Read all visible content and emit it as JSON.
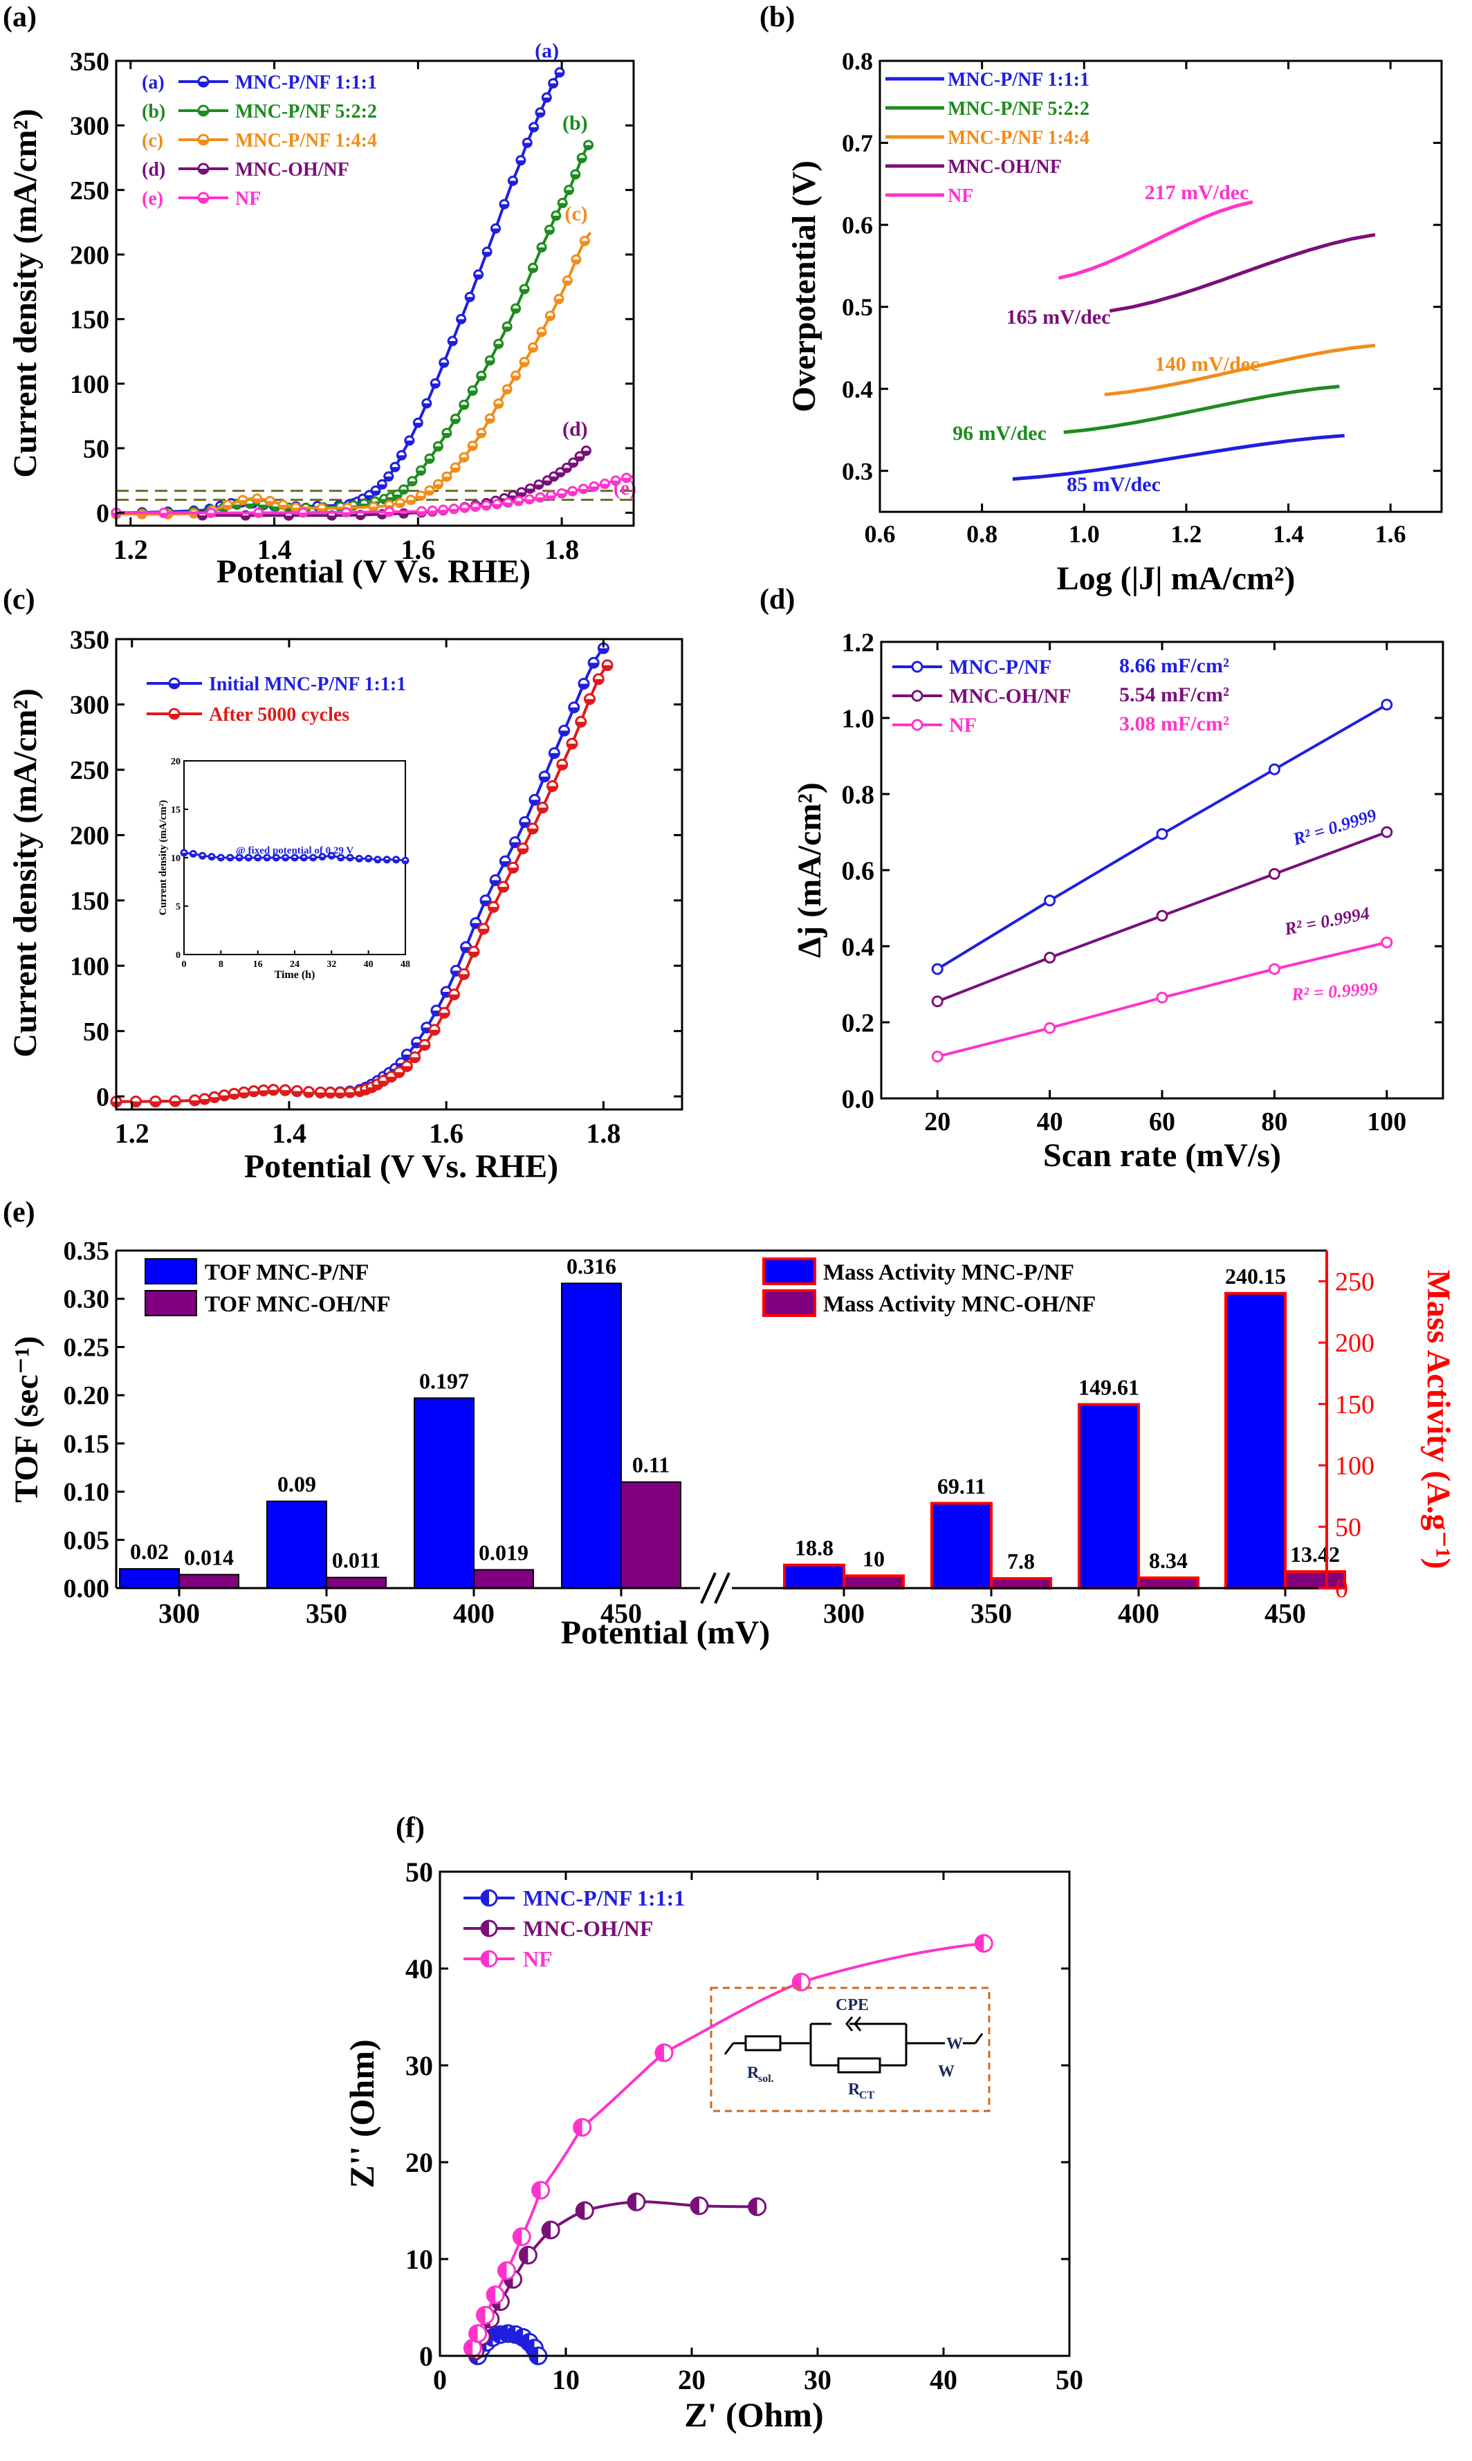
{
  "chart_data": [
    {
      "type": "line",
      "panel": "(a)",
      "xlabel": "Potential (V Vs. RHE)",
      "ylabel": "Current density (mA/cm²)",
      "xlim": [
        1.18,
        1.9
      ],
      "ylim": [
        -10,
        350
      ],
      "xticks": [
        "1.2",
        "1.4",
        "1.6",
        "1.8"
      ],
      "xtick_values": [
        1.2,
        1.4,
        1.6,
        1.8
      ],
      "yticks": [
        "0",
        "50",
        "100",
        "150",
        "200",
        "250",
        "300",
        "350"
      ],
      "ytick_values": [
        0,
        50,
        100,
        150,
        200,
        250,
        300,
        350
      ],
      "reference_lines": [
        10,
        17
      ],
      "legend_position": "top-left",
      "series": [
        {
          "label": "(a)",
          "name": "MNC-P/NF 1:1:1",
          "color": "#1f1fe0",
          "x": [
            1.18,
            1.3,
            1.35,
            1.4,
            1.5,
            1.52,
            1.55,
            1.58,
            1.62,
            1.66,
            1.7,
            1.74,
            1.77,
            1.8
          ],
          "y": [
            0,
            2,
            8,
            5,
            6,
            10,
            22,
            48,
            95,
            150,
            208,
            268,
            310,
            343
          ]
        },
        {
          "label": "(b)",
          "name": "MNC-P/NF 5:2:2",
          "color": "#1e8c1e",
          "x": [
            1.18,
            1.3,
            1.36,
            1.42,
            1.5,
            1.55,
            1.58,
            1.62,
            1.66,
            1.7,
            1.74,
            1.78,
            1.81,
            1.84
          ],
          "y": [
            -1,
            1,
            7,
            4,
            5,
            10,
            18,
            45,
            80,
            118,
            163,
            215,
            250,
            287
          ]
        },
        {
          "label": "(c)",
          "name": "MNC-P/NF 1:4:4",
          "color": "#f28c1a",
          "x": [
            1.18,
            1.3,
            1.37,
            1.43,
            1.55,
            1.6,
            1.64,
            1.68,
            1.72,
            1.76,
            1.8,
            1.84
          ],
          "y": [
            -1,
            0,
            11,
            4,
            5,
            12,
            28,
            55,
            92,
            128,
            170,
            217
          ]
        },
        {
          "label": "(d)",
          "name": "MNC-OH/NF",
          "color": "#7a0f7a",
          "x": [
            1.3,
            1.5,
            1.6,
            1.65,
            1.7,
            1.74,
            1.78,
            1.81,
            1.84
          ],
          "y": [
            -2,
            -2,
            0,
            3,
            8,
            15,
            25,
            36,
            50
          ]
        },
        {
          "label": "(e)",
          "name": "NF",
          "color": "#ff33cc",
          "x": [
            1.18,
            1.4,
            1.6,
            1.65,
            1.7,
            1.75,
            1.8,
            1.85,
            1.9
          ],
          "y": [
            0,
            0,
            1,
            3,
            6,
            10,
            15,
            21,
            28
          ]
        }
      ]
    },
    {
      "type": "line",
      "panel": "(b)",
      "xlabel": "Log (|J| mA/cm²)",
      "ylabel": "Overpotential (V)",
      "xlim": [
        0.6,
        1.7
      ],
      "ylim": [
        0.25,
        0.8
      ],
      "xticks": [
        "0.6",
        "0.8",
        "1.0",
        "1.2",
        "1.4",
        "1.6"
      ],
      "xtick_values": [
        0.6,
        0.8,
        1.0,
        1.2,
        1.4,
        1.6
      ],
      "yticks": [
        "0.3",
        "0.4",
        "0.5",
        "0.6",
        "0.7",
        "0.8"
      ],
      "ytick_values": [
        0.3,
        0.4,
        0.5,
        0.6,
        0.7,
        0.8
      ],
      "legend_position": "top-left",
      "series": [
        {
          "name": "MNC-P/NF 1:1:1",
          "color": "#1f1fe0",
          "x": [
            0.86,
            1.51
          ],
          "y": [
            0.29,
            0.343
          ],
          "slope_label": "85 mV/dec"
        },
        {
          "name": "MNC-P/NF 5:2:2",
          "color": "#1e8c1e",
          "x": [
            0.96,
            1.5
          ],
          "y": [
            0.347,
            0.403
          ],
          "slope_label": "96 mV/dec"
        },
        {
          "name": "MNC-P/NF 1:4:4",
          "color": "#f28c1a",
          "x": [
            1.04,
            1.57
          ],
          "y": [
            0.393,
            0.453
          ],
          "slope_label": "140 mV/dec"
        },
        {
          "name": "MNC-OH/NF",
          "color": "#7a0f7a",
          "x": [
            1.05,
            1.57
          ],
          "y": [
            0.495,
            0.588
          ],
          "slope_label": "165 mV/dec"
        },
        {
          "name": "NF",
          "color": "#ff33cc",
          "x": [
            0.95,
            1.33
          ],
          "y": [
            0.535,
            0.628
          ],
          "slope_label": "217 mV/dec"
        }
      ]
    },
    {
      "type": "line",
      "panel": "(c)",
      "xlabel": "Potential (V Vs. RHE)",
      "ylabel": "Current density (mA/cm²)",
      "xlim": [
        1.18,
        1.9
      ],
      "ylim": [
        -10,
        350
      ],
      "xticks": [
        "1.2",
        "1.4",
        "1.6",
        "1.8"
      ],
      "xtick_values": [
        1.2,
        1.4,
        1.6,
        1.8
      ],
      "yticks": [
        "0",
        "50",
        "100",
        "150",
        "200",
        "250",
        "300",
        "350"
      ],
      "ytick_values": [
        0,
        50,
        100,
        150,
        200,
        250,
        300,
        350
      ],
      "legend_position": "top-left",
      "series": [
        {
          "name": "Initial MNC-P/NF 1:1:1",
          "color": "#1f1fe0",
          "x": [
            1.18,
            1.28,
            1.33,
            1.38,
            1.44,
            1.49,
            1.52,
            1.55,
            1.6,
            1.65,
            1.7,
            1.75,
            1.8
          ],
          "y": [
            -4,
            -3,
            2,
            5,
            3,
            5,
            15,
            32,
            80,
            150,
            210,
            280,
            343
          ]
        },
        {
          "name": "After 5000 cycles",
          "color": "#e01a1a",
          "x": [
            1.18,
            1.28,
            1.33,
            1.38,
            1.44,
            1.49,
            1.52,
            1.56,
            1.61,
            1.66,
            1.71,
            1.76,
            1.805
          ],
          "y": [
            -4,
            -3,
            2,
            5,
            3,
            4,
            12,
            30,
            78,
            145,
            205,
            270,
            330
          ]
        }
      ],
      "inset": {
        "xlabel": "Time (h)",
        "ylabel": "Current density (mA/cm²)",
        "annotation": "@ fixed potential of 0.29 V",
        "xlim": [
          0,
          48
        ],
        "ylim": [
          0,
          20
        ],
        "xticks": [
          "0",
          "8",
          "16",
          "24",
          "32",
          "40",
          "48"
        ],
        "xtick_values": [
          0,
          8,
          16,
          24,
          32,
          40,
          48
        ],
        "yticks": [
          "0",
          "5",
          "10",
          "15",
          "20"
        ],
        "ytick_values": [
          0,
          5,
          10,
          15,
          20
        ],
        "color": "#1f1fe0",
        "x": [
          0,
          2,
          4,
          6,
          8,
          10,
          12,
          14,
          16,
          18,
          20,
          22,
          24,
          26,
          28,
          30,
          32,
          34,
          36,
          38,
          40,
          42,
          44,
          46,
          48
        ],
        "y": [
          10.5,
          10.4,
          10.2,
          10.1,
          10,
          10,
          10,
          10,
          10,
          10,
          10,
          10,
          10,
          10,
          10,
          10.1,
          10.2,
          10,
          10,
          9.9,
          9.9,
          9.8,
          9.8,
          9.8,
          9.7
        ]
      }
    },
    {
      "type": "scatter",
      "panel": "(d)",
      "xlabel": "Scan rate (mV/s)",
      "ylabel": "Δj (mA/cm²)",
      "xlim": [
        10,
        110
      ],
      "ylim": [
        0,
        1.2
      ],
      "xticks": [
        "20",
        "40",
        "60",
        "80",
        "100"
      ],
      "xtick_values": [
        20,
        40,
        60,
        80,
        100
      ],
      "yticks": [
        "0.0",
        "0.2",
        "0.4",
        "0.6",
        "0.8",
        "1.0",
        "1.2"
      ],
      "ytick_values": [
        0,
        0.2,
        0.4,
        0.6,
        0.8,
        1.0,
        1.2
      ],
      "legend_position": "top-left",
      "x": [
        20,
        40,
        60,
        80,
        100
      ],
      "series": [
        {
          "name": "MNC-P/NF",
          "color": "#1f1fe0",
          "values": [
            0.34,
            0.52,
            0.695,
            0.865,
            1.035
          ],
          "cdl": "8.66 mF/cm²",
          "r2": "R² = 0.9999"
        },
        {
          "name": "MNC-OH/NF",
          "color": "#7a0f7a",
          "values": [
            0.255,
            0.37,
            0.48,
            0.59,
            0.7
          ],
          "cdl": "5.54 mF/cm²",
          "r2": "R² = 0.9994"
        },
        {
          "name": "NF",
          "color": "#ff33cc",
          "values": [
            0.11,
            0.185,
            0.265,
            0.34,
            0.41
          ],
          "cdl": "3.08 mF/cm²",
          "r2": "R² = 0.9999"
        }
      ]
    },
    {
      "type": "bar",
      "panel": "(e)",
      "xlabel": "Potential (mV)",
      "ylabel_left": "TOF (sec⁻¹)",
      "ylabel_right": "Mass Activity (A.g⁻¹)",
      "categories": [
        "300",
        "350",
        "400",
        "450"
      ],
      "ylim_left": [
        0,
        0.35
      ],
      "ylim_right": [
        0,
        275
      ],
      "yticks_left": [
        "0.00",
        "0.05",
        "0.10",
        "0.15",
        "0.20",
        "0.25",
        "0.30",
        "0.35"
      ],
      "ytick_values_left": [
        0,
        0.05,
        0.1,
        0.15,
        0.2,
        0.25,
        0.3,
        0.35
      ],
      "yticks_right": [
        "0",
        "50",
        "100",
        "150",
        "200",
        "250"
      ],
      "ytick_values_right": [
        0,
        50,
        100,
        150,
        200,
        250
      ],
      "colors": {
        "mnc_p": "#0000ff",
        "mnc_oh": "#800080",
        "right_axis": "#ff0000"
      },
      "tof_series": [
        {
          "name": "TOF MNC-P/NF",
          "values": [
            0.02,
            0.09,
            0.197,
            0.316
          ],
          "labels": [
            "0.02",
            "0.09",
            "0.197",
            "0.316"
          ]
        },
        {
          "name": "TOF MNC-OH/NF",
          "values": [
            0.014,
            0.011,
            0.019,
            0.11
          ],
          "labels": [
            "0.014",
            "0.011",
            "0.019",
            "0.11"
          ]
        }
      ],
      "mass_series": [
        {
          "name": "Mass Activity MNC-P/NF",
          "values": [
            18.8,
            69.11,
            149.61,
            240.15
          ],
          "labels": [
            "18.8",
            "69.11",
            "149.61",
            "240.15"
          ]
        },
        {
          "name": "Mass Activity MNC-OH/NF",
          "values": [
            10,
            7.8,
            8.34,
            13.42
          ],
          "labels": [
            "10",
            "7.8",
            "8.34",
            "13.42"
          ]
        }
      ]
    },
    {
      "type": "scatter",
      "panel": "(f)",
      "xlabel": "Z' (Ohm)",
      "ylabel": "Z'' (Ohm)",
      "xlim": [
        0,
        50
      ],
      "ylim": [
        0,
        50
      ],
      "xticks": [
        "0",
        "10",
        "20",
        "30",
        "40",
        "50"
      ],
      "xtick_values": [
        0,
        10,
        20,
        30,
        40,
        50
      ],
      "yticks": [
        "0",
        "10",
        "20",
        "30",
        "40",
        "50"
      ],
      "ytick_values": [
        0,
        10,
        20,
        30,
        40,
        50
      ],
      "legend_position": "top-left",
      "series": [
        {
          "name": "MNC-P/NF 1:1:1",
          "color": "#1f1fe0",
          "x": [
            3,
            3.3,
            3.7,
            4.2,
            4.8,
            5.4,
            6.0,
            6.6,
            7.1,
            7.5,
            7.8
          ],
          "y": [
            0,
            0.8,
            1.4,
            1.9,
            2.2,
            2.3,
            2.2,
            1.9,
            1.4,
            0.8,
            0
          ]
        },
        {
          "name": "MNC-OH/NF",
          "color": "#7a0f7a",
          "x": [
            2.8,
            3.3,
            4.0,
            4.8,
            5.8,
            7.0,
            8.8,
            11.5,
            15.6,
            20.6,
            25.2
          ],
          "y": [
            0.5,
            2.0,
            3.8,
            5.6,
            7.9,
            10.4,
            13.0,
            15.0,
            15.9,
            15.5,
            15.4
          ]
        },
        {
          "name": "NF",
          "color": "#ff33cc",
          "x": [
            2.6,
            3.0,
            3.6,
            4.4,
            5.3,
            6.5,
            8.0,
            11.3,
            17.8,
            28.7,
            43.2
          ],
          "y": [
            0.8,
            2.3,
            4.2,
            6.3,
            8.8,
            12.3,
            17.1,
            23.6,
            31.3,
            38.6,
            42.6
          ]
        }
      ],
      "circuit_labels": {
        "cpe": "CPE",
        "rsol_main": "R",
        "rsol_sub": "sol.",
        "rct_main": "R",
        "rct_sub": "CT",
        "w_top": "W",
        "w_bottom": "W"
      }
    }
  ]
}
